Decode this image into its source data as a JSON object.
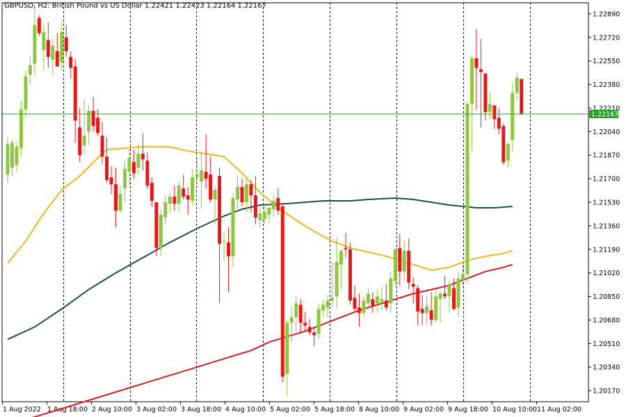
{
  "header": {
    "symbol": "GBPUSD",
    "timeframe": "H2",
    "description": "British Pound vs US Dollar",
    "ohlc": "1.22421 1.22423 1.22164 1.22167"
  },
  "header_text": "GBPUSD, H2:  British Pound vs US Dollar  1.22421 1.22423 1.22164 1.22167",
  "last_price_label": "1.22167",
  "colors": {
    "bull": "#8DC63F",
    "bear": "#E3191A",
    "ma_fast": "#F0B41E",
    "ma_mid": "#1B4F45",
    "ma_slow": "#D41A22",
    "last_price": "#2AA02A",
    "grid": "#000000",
    "axis": "#000000"
  },
  "chart_data": {
    "type": "candlestick",
    "title": "GBPUSD, H2",
    "price_range": [
      1.2009,
      1.2297
    ],
    "y_ticks": [
      "1.22890",
      "1.22720",
      "1.22550",
      "1.22380",
      "1.22210",
      "1.22040",
      "1.21870",
      "1.21700",
      "1.21530",
      "1.21360",
      "1.21190",
      "1.21020",
      "1.20850",
      "1.20680",
      "1.20510",
      "1.20340",
      "1.20170"
    ],
    "x_labels": [
      "1 Aug 2022",
      "1 Aug 18:00",
      "2 Aug 10:00",
      "3 Aug 02:00",
      "3 Aug 18:00",
      "4 Aug 10:00",
      "5 Aug 02:00",
      "5 Aug 18:00",
      "8 Aug 10:00",
      "9 Aug 02:00",
      "9 Aug 18:00",
      "10 Aug 10:00",
      "11 Aug 02:00"
    ],
    "grid": "vertical dashed separators",
    "candles": [
      {
        "o": 1.2173,
        "h": 1.22,
        "l": 1.2167,
        "c": 1.2195
      },
      {
        "o": 1.2178,
        "h": 1.2198,
        "l": 1.2172,
        "c": 1.2196
      },
      {
        "o": 1.218,
        "h": 1.2197,
        "l": 1.2175,
        "c": 1.2193
      },
      {
        "o": 1.2192,
        "h": 1.2227,
        "l": 1.2186,
        "c": 1.222
      },
      {
        "o": 1.222,
        "h": 1.2248,
        "l": 1.2214,
        "c": 1.2244
      },
      {
        "o": 1.2245,
        "h": 1.2259,
        "l": 1.2238,
        "c": 1.2252
      },
      {
        "o": 1.2253,
        "h": 1.2297,
        "l": 1.2244,
        "c": 1.2281
      },
      {
        "o": 1.2286,
        "h": 1.2288,
        "l": 1.2273,
        "c": 1.2275
      },
      {
        "o": 1.2263,
        "h": 1.2282,
        "l": 1.2248,
        "c": 1.2276
      },
      {
        "o": 1.227,
        "h": 1.2283,
        "l": 1.225,
        "c": 1.2258
      },
      {
        "o": 1.2256,
        "h": 1.2271,
        "l": 1.2245,
        "c": 1.2266
      },
      {
        "o": 1.2262,
        "h": 1.2275,
        "l": 1.2251,
        "c": 1.2251
      },
      {
        "o": 1.2254,
        "h": 1.2284,
        "l": 1.2248,
        "c": 1.2276
      },
      {
        "o": 1.2272,
        "h": 1.2281,
        "l": 1.2258,
        "c": 1.2262
      },
      {
        "o": 1.2258,
        "h": 1.2262,
        "l": 1.2242,
        "c": 1.225
      },
      {
        "o": 1.2251,
        "h": 1.2256,
        "l": 1.2196,
        "c": 1.2212
      },
      {
        "o": 1.2207,
        "h": 1.2221,
        "l": 1.2182,
        "c": 1.2187
      },
      {
        "o": 1.2194,
        "h": 1.2228,
        "l": 1.2188,
        "c": 1.2201
      },
      {
        "o": 1.2204,
        "h": 1.2223,
        "l": 1.2194,
        "c": 1.2219
      },
      {
        "o": 1.2219,
        "h": 1.2229,
        "l": 1.2204,
        "c": 1.2208
      },
      {
        "o": 1.2214,
        "h": 1.222,
        "l": 1.2201,
        "c": 1.2203
      },
      {
        "o": 1.2201,
        "h": 1.2211,
        "l": 1.2181,
        "c": 1.2186
      },
      {
        "o": 1.2186,
        "h": 1.22,
        "l": 1.2167,
        "c": 1.2169
      },
      {
        "o": 1.2171,
        "h": 1.2179,
        "l": 1.2159,
        "c": 1.2166
      },
      {
        "o": 1.2166,
        "h": 1.2178,
        "l": 1.2135,
        "c": 1.2147
      },
      {
        "o": 1.2147,
        "h": 1.2165,
        "l": 1.2145,
        "c": 1.2159
      },
      {
        "o": 1.2163,
        "h": 1.2183,
        "l": 1.2153,
        "c": 1.2177
      },
      {
        "o": 1.2175,
        "h": 1.2191,
        "l": 1.2165,
        "c": 1.2185
      },
      {
        "o": 1.2182,
        "h": 1.2191,
        "l": 1.217,
        "c": 1.2174
      },
      {
        "o": 1.2178,
        "h": 1.2196,
        "l": 1.2173,
        "c": 1.2188
      },
      {
        "o": 1.2188,
        "h": 1.2203,
        "l": 1.2176,
        "c": 1.2184
      },
      {
        "o": 1.2183,
        "h": 1.2189,
        "l": 1.2163,
        "c": 1.2165
      },
      {
        "o": 1.2167,
        "h": 1.2171,
        "l": 1.215,
        "c": 1.2154
      },
      {
        "o": 1.2153,
        "h": 1.2153,
        "l": 1.2114,
        "c": 1.212
      },
      {
        "o": 1.212,
        "h": 1.2148,
        "l": 1.2114,
        "c": 1.2144
      },
      {
        "o": 1.2142,
        "h": 1.2158,
        "l": 1.2137,
        "c": 1.2153
      },
      {
        "o": 1.2152,
        "h": 1.216,
        "l": 1.2145,
        "c": 1.2157
      },
      {
        "o": 1.2157,
        "h": 1.2165,
        "l": 1.2147,
        "c": 1.2152
      },
      {
        "o": 1.2152,
        "h": 1.2168,
        "l": 1.2146,
        "c": 1.2165
      },
      {
        "o": 1.2163,
        "h": 1.2173,
        "l": 1.2155,
        "c": 1.2157
      },
      {
        "o": 1.2158,
        "h": 1.2164,
        "l": 1.2144,
        "c": 1.2155
      },
      {
        "o": 1.2154,
        "h": 1.2177,
        "l": 1.2151,
        "c": 1.2171
      },
      {
        "o": 1.2171,
        "h": 1.2185,
        "l": 1.2165,
        "c": 1.2173
      },
      {
        "o": 1.2168,
        "h": 1.219,
        "l": 1.2149,
        "c": 1.2176
      },
      {
        "o": 1.2175,
        "h": 1.2202,
        "l": 1.2163,
        "c": 1.217
      },
      {
        "o": 1.2173,
        "h": 1.2186,
        "l": 1.2153,
        "c": 1.2155
      },
      {
        "o": 1.2155,
        "h": 1.2165,
        "l": 1.2137,
        "c": 1.2162
      },
      {
        "o": 1.2172,
        "h": 1.2178,
        "l": 1.208,
        "c": 1.2123
      },
      {
        "o": 1.2125,
        "h": 1.2131,
        "l": 1.2111,
        "c": 1.2125
      },
      {
        "o": 1.2124,
        "h": 1.2135,
        "l": 1.2088,
        "c": 1.2114
      },
      {
        "o": 1.2114,
        "h": 1.216,
        "l": 1.2106,
        "c": 1.2156
      },
      {
        "o": 1.2155,
        "h": 1.2172,
        "l": 1.2146,
        "c": 1.2164
      },
      {
        "o": 1.2164,
        "h": 1.217,
        "l": 1.215,
        "c": 1.2153
      },
      {
        "o": 1.2153,
        "h": 1.2171,
        "l": 1.2146,
        "c": 1.2166
      },
      {
        "o": 1.2166,
        "h": 1.2169,
        "l": 1.2146,
        "c": 1.2158
      },
      {
        "o": 1.2158,
        "h": 1.2172,
        "l": 1.2137,
        "c": 1.2142
      },
      {
        "o": 1.214,
        "h": 1.215,
        "l": 1.2135,
        "c": 1.2145
      },
      {
        "o": 1.2141,
        "h": 1.215,
        "l": 1.2137,
        "c": 1.2146
      },
      {
        "o": 1.2144,
        "h": 1.2152,
        "l": 1.2138,
        "c": 1.2149
      },
      {
        "o": 1.2148,
        "h": 1.2158,
        "l": 1.2142,
        "c": 1.2154
      },
      {
        "o": 1.2156,
        "h": 1.2163,
        "l": 1.2144,
        "c": 1.2147
      },
      {
        "o": 1.215,
        "h": 1.2152,
        "l": 1.2023,
        "c": 1.2027
      },
      {
        "o": 1.2029,
        "h": 1.2068,
        "l": 1.2013,
        "c": 1.2066
      },
      {
        "o": 1.2066,
        "h": 1.2078,
        "l": 1.2052,
        "c": 1.207
      },
      {
        "o": 1.207,
        "h": 1.2085,
        "l": 1.206,
        "c": 1.208
      },
      {
        "o": 1.2079,
        "h": 1.2083,
        "l": 1.2058,
        "c": 1.2066
      },
      {
        "o": 1.2066,
        "h": 1.2074,
        "l": 1.206,
        "c": 1.2064
      },
      {
        "o": 1.2063,
        "h": 1.2069,
        "l": 1.2057,
        "c": 1.2059
      },
      {
        "o": 1.2059,
        "h": 1.2063,
        "l": 1.2049,
        "c": 1.2057
      },
      {
        "o": 1.2058,
        "h": 1.208,
        "l": 1.2054,
        "c": 1.2076
      },
      {
        "o": 1.2075,
        "h": 1.2083,
        "l": 1.207,
        "c": 1.2079
      },
      {
        "o": 1.2077,
        "h": 1.2086,
        "l": 1.207,
        "c": 1.2082
      },
      {
        "o": 1.2082,
        "h": 1.211,
        "l": 1.2078,
        "c": 1.2084
      },
      {
        "o": 1.2085,
        "h": 1.2128,
        "l": 1.2076,
        "c": 1.211
      },
      {
        "o": 1.2108,
        "h": 1.2119,
        "l": 1.209,
        "c": 1.2118
      },
      {
        "o": 1.212,
        "h": 1.2131,
        "l": 1.2113,
        "c": 1.2119
      },
      {
        "o": 1.2119,
        "h": 1.2124,
        "l": 1.2079,
        "c": 1.2082
      },
      {
        "o": 1.2084,
        "h": 1.2093,
        "l": 1.2075,
        "c": 1.2076
      },
      {
        "o": 1.2077,
        "h": 1.2087,
        "l": 1.2063,
        "c": 1.2073
      },
      {
        "o": 1.2073,
        "h": 1.2085,
        "l": 1.207,
        "c": 1.2082
      },
      {
        "o": 1.208,
        "h": 1.2091,
        "l": 1.2076,
        "c": 1.2087
      },
      {
        "o": 1.2083,
        "h": 1.2088,
        "l": 1.2073,
        "c": 1.2078
      },
      {
        "o": 1.208,
        "h": 1.209,
        "l": 1.2073,
        "c": 1.2085
      },
      {
        "o": 1.2081,
        "h": 1.2092,
        "l": 1.2075,
        "c": 1.2083
      },
      {
        "o": 1.2082,
        "h": 1.2094,
        "l": 1.2075,
        "c": 1.2077
      },
      {
        "o": 1.208,
        "h": 1.2103,
        "l": 1.2073,
        "c": 1.2098
      },
      {
        "o": 1.2096,
        "h": 1.212,
        "l": 1.2092,
        "c": 1.2119
      },
      {
        "o": 1.212,
        "h": 1.213,
        "l": 1.2093,
        "c": 1.2103
      },
      {
        "o": 1.2103,
        "h": 1.2126,
        "l": 1.2096,
        "c": 1.2118
      },
      {
        "o": 1.2118,
        "h": 1.2127,
        "l": 1.209,
        "c": 1.2095
      },
      {
        "o": 1.2094,
        "h": 1.2099,
        "l": 1.208,
        "c": 1.2092
      },
      {
        "o": 1.2091,
        "h": 1.2093,
        "l": 1.2064,
        "c": 1.2074
      },
      {
        "o": 1.2076,
        "h": 1.2086,
        "l": 1.2064,
        "c": 1.2073
      },
      {
        "o": 1.2073,
        "h": 1.2086,
        "l": 1.2065,
        "c": 1.2078
      },
      {
        "o": 1.2075,
        "h": 1.2088,
        "l": 1.2064,
        "c": 1.2068
      },
      {
        "o": 1.2068,
        "h": 1.209,
        "l": 1.2066,
        "c": 1.2085
      },
      {
        "o": 1.2083,
        "h": 1.2089,
        "l": 1.2066,
        "c": 1.2087
      },
      {
        "o": 1.2087,
        "h": 1.21,
        "l": 1.2083,
        "c": 1.2085
      },
      {
        "o": 1.2085,
        "h": 1.2096,
        "l": 1.2073,
        "c": 1.2094
      },
      {
        "o": 1.2091,
        "h": 1.2098,
        "l": 1.2075,
        "c": 1.2076
      },
      {
        "o": 1.2077,
        "h": 1.2103,
        "l": 1.207,
        "c": 1.2098
      },
      {
        "o": 1.2097,
        "h": 1.211,
        "l": 1.2092,
        "c": 1.2101
      },
      {
        "o": 1.2101,
        "h": 1.2225,
        "l": 1.2094,
        "c": 1.2224
      },
      {
        "o": 1.2224,
        "h": 1.2259,
        "l": 1.219,
        "c": 1.2257
      },
      {
        "o": 1.2257,
        "h": 1.2278,
        "l": 1.222,
        "c": 1.225
      },
      {
        "o": 1.2249,
        "h": 1.2271,
        "l": 1.2207,
        "c": 1.2247
      },
      {
        "o": 1.2246,
        "h": 1.2246,
        "l": 1.2212,
        "c": 1.2218
      },
      {
        "o": 1.2218,
        "h": 1.2233,
        "l": 1.2213,
        "c": 1.2224
      },
      {
        "o": 1.2223,
        "h": 1.2223,
        "l": 1.2206,
        "c": 1.2213
      },
      {
        "o": 1.2214,
        "h": 1.2221,
        "l": 1.2202,
        "c": 1.2206
      },
      {
        "o": 1.2208,
        "h": 1.221,
        "l": 1.218,
        "c": 1.2182
      },
      {
        "o": 1.2183,
        "h": 1.2196,
        "l": 1.2178,
        "c": 1.2195
      },
      {
        "o": 1.2198,
        "h": 1.2239,
        "l": 1.219,
        "c": 1.2232
      },
      {
        "o": 1.2232,
        "h": 1.2247,
        "l": 1.2226,
        "c": 1.2243
      },
      {
        "o": 1.2242,
        "h": 1.2242,
        "l": 1.2216,
        "c": 1.2217
      }
    ],
    "series": [
      {
        "name": "MA fast",
        "color": "#F0B41E",
        "points": [
          [
            0,
            1.2109
          ],
          [
            4,
            1.2125
          ],
          [
            8,
            1.2145
          ],
          [
            12,
            1.2162
          ],
          [
            16,
            1.2172
          ],
          [
            20,
            1.2185
          ],
          [
            22,
            1.2191
          ],
          [
            26,
            1.2192
          ],
          [
            30,
            1.2193
          ],
          [
            36,
            1.2193
          ],
          [
            40,
            1.219
          ],
          [
            44,
            1.2188
          ],
          [
            48,
            1.2186
          ],
          [
            52,
            1.2174
          ],
          [
            56,
            1.216
          ],
          [
            60,
            1.2149
          ],
          [
            64,
            1.214
          ],
          [
            68,
            1.2132
          ],
          [
            72,
            1.2125
          ],
          [
            76,
            1.212
          ],
          [
            80,
            1.2117
          ],
          [
            84,
            1.2114
          ],
          [
            88,
            1.211
          ],
          [
            92,
            1.2106
          ],
          [
            94,
            1.2104
          ],
          [
            98,
            1.2106
          ],
          [
            102,
            1.2111
          ],
          [
            106,
            1.2114
          ],
          [
            110,
            1.2116
          ],
          [
            112,
            1.2118
          ]
        ]
      },
      {
        "name": "MA mid",
        "color": "#1B4F45",
        "points": [
          [
            0,
            1.2054
          ],
          [
            6,
            1.2063
          ],
          [
            12,
            1.2076
          ],
          [
            18,
            1.209
          ],
          [
            24,
            1.2102
          ],
          [
            30,
            1.2113
          ],
          [
            36,
            1.2124
          ],
          [
            42,
            1.2134
          ],
          [
            48,
            1.2143
          ],
          [
            52,
            1.2148
          ],
          [
            56,
            1.2151
          ],
          [
            62,
            1.2152
          ],
          [
            66,
            1.2153
          ],
          [
            70,
            1.2154
          ],
          [
            76,
            1.2154
          ],
          [
            80,
            1.2155
          ],
          [
            86,
            1.2156
          ],
          [
            90,
            1.2155
          ],
          [
            94,
            1.2153
          ],
          [
            98,
            1.2151
          ],
          [
            104,
            1.2149
          ],
          [
            108,
            1.2149
          ],
          [
            112,
            1.215
          ]
        ]
      },
      {
        "name": "MA slow",
        "color": "#D41A22",
        "points": [
          [
            0,
            1.1993
          ],
          [
            6,
            1.1998
          ],
          [
            12,
            1.2004
          ],
          [
            18,
            1.201
          ],
          [
            24,
            1.2016
          ],
          [
            30,
            1.2022
          ],
          [
            36,
            1.2028
          ],
          [
            42,
            1.2034
          ],
          [
            48,
            1.204
          ],
          [
            54,
            1.2046
          ],
          [
            58,
            1.2052
          ],
          [
            62,
            1.2056
          ],
          [
            66,
            1.206
          ],
          [
            70,
            1.2065
          ],
          [
            74,
            1.207
          ],
          [
            78,
            1.2075
          ],
          [
            82,
            1.2079
          ],
          [
            86,
            1.2083
          ],
          [
            90,
            1.2087
          ],
          [
            94,
            1.209
          ],
          [
            98,
            1.2093
          ],
          [
            102,
            1.2098
          ],
          [
            106,
            1.2103
          ],
          [
            110,
            1.2106
          ],
          [
            112,
            1.2108
          ]
        ]
      }
    ],
    "last_price": 1.22167
  }
}
